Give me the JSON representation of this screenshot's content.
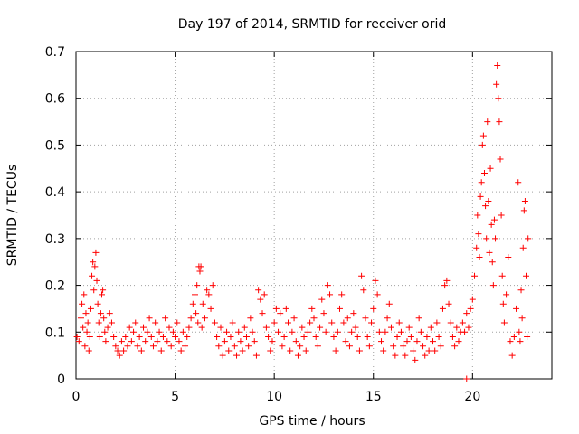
{
  "chart_data": {
    "type": "scatter",
    "title": "Day 197 of 2014, SRMTID for receiver orid",
    "xlabel": "GPS time / hours",
    "ylabel": "SRMTID / TECUs",
    "xlim": [
      0,
      24
    ],
    "ylim": [
      0,
      0.7
    ],
    "xticks": [
      0,
      5,
      10,
      15,
      20
    ],
    "yticks": [
      0,
      0.1,
      0.2,
      0.3,
      0.4,
      0.5,
      0.6,
      0.7
    ],
    "xtick_labels": [
      "0",
      "5",
      "10",
      "15",
      "20"
    ],
    "ytick_labels": [
      "0",
      "0.1",
      "0.2",
      "0.3",
      "0.4",
      "0.5",
      "0.6",
      "0.7"
    ],
    "grid": true,
    "marker": "plus",
    "color": "#ff0000",
    "series": [
      {
        "name": "SRMTID",
        "points": [
          [
            0.05,
            0.09
          ],
          [
            0.15,
            0.08
          ],
          [
            0.25,
            0.13
          ],
          [
            0.3,
            0.16
          ],
          [
            0.35,
            0.11
          ],
          [
            0.4,
            0.18
          ],
          [
            0.45,
            0.07
          ],
          [
            0.5,
            0.14
          ],
          [
            0.55,
            0.1
          ],
          [
            0.6,
            0.12
          ],
          [
            0.65,
            0.06
          ],
          [
            0.7,
            0.09
          ],
          [
            0.75,
            0.15
          ],
          [
            0.8,
            0.22
          ],
          [
            0.85,
            0.25
          ],
          [
            0.9,
            0.19
          ],
          [
            0.95,
            0.24
          ],
          [
            1.0,
            0.27
          ],
          [
            1.05,
            0.21
          ],
          [
            1.1,
            0.16
          ],
          [
            1.15,
            0.12
          ],
          [
            1.2,
            0.09
          ],
          [
            1.25,
            0.14
          ],
          [
            1.3,
            0.18
          ],
          [
            1.35,
            0.19
          ],
          [
            1.4,
            0.13
          ],
          [
            1.45,
            0.1
          ],
          [
            1.5,
            0.08
          ],
          [
            1.6,
            0.11
          ],
          [
            1.7,
            0.14
          ],
          [
            1.8,
            0.12
          ],
          [
            1.9,
            0.09
          ],
          [
            2.0,
            0.07
          ],
          [
            2.1,
            0.06
          ],
          [
            2.2,
            0.05
          ],
          [
            2.3,
            0.08
          ],
          [
            2.4,
            0.06
          ],
          [
            2.5,
            0.09
          ],
          [
            2.6,
            0.07
          ],
          [
            2.7,
            0.11
          ],
          [
            2.8,
            0.08
          ],
          [
            2.9,
            0.1
          ],
          [
            3.0,
            0.12
          ],
          [
            3.1,
            0.07
          ],
          [
            3.2,
            0.09
          ],
          [
            3.3,
            0.06
          ],
          [
            3.4,
            0.11
          ],
          [
            3.5,
            0.08
          ],
          [
            3.6,
            0.1
          ],
          [
            3.7,
            0.13
          ],
          [
            3.8,
            0.09
          ],
          [
            3.9,
            0.07
          ],
          [
            4.0,
            0.12
          ],
          [
            4.1,
            0.08
          ],
          [
            4.2,
            0.1
          ],
          [
            4.3,
            0.06
          ],
          [
            4.4,
            0.09
          ],
          [
            4.5,
            0.13
          ],
          [
            4.6,
            0.08
          ],
          [
            4.7,
            0.11
          ],
          [
            4.8,
            0.07
          ],
          [
            4.9,
            0.1
          ],
          [
            5.0,
            0.09
          ],
          [
            5.1,
            0.12
          ],
          [
            5.2,
            0.08
          ],
          [
            5.3,
            0.06
          ],
          [
            5.4,
            0.1
          ],
          [
            5.5,
            0.07
          ],
          [
            5.6,
            0.09
          ],
          [
            5.7,
            0.11
          ],
          [
            5.8,
            0.13
          ],
          [
            5.9,
            0.16
          ],
          [
            6.0,
            0.18
          ],
          [
            6.05,
            0.14
          ],
          [
            6.1,
            0.2
          ],
          [
            6.15,
            0.12
          ],
          [
            6.2,
            0.24
          ],
          [
            6.25,
            0.23
          ],
          [
            6.3,
            0.24
          ],
          [
            6.35,
            0.11
          ],
          [
            6.4,
            0.16
          ],
          [
            6.5,
            0.13
          ],
          [
            6.6,
            0.19
          ],
          [
            6.7,
            0.18
          ],
          [
            6.8,
            0.15
          ],
          [
            6.9,
            0.2
          ],
          [
            7.0,
            0.12
          ],
          [
            7.1,
            0.09
          ],
          [
            7.2,
            0.07
          ],
          [
            7.3,
            0.11
          ],
          [
            7.4,
            0.05
          ],
          [
            7.5,
            0.08
          ],
          [
            7.6,
            0.1
          ],
          [
            7.7,
            0.06
          ],
          [
            7.8,
            0.09
          ],
          [
            7.9,
            0.12
          ],
          [
            8.0,
            0.07
          ],
          [
            8.1,
            0.05
          ],
          [
            8.2,
            0.1
          ],
          [
            8.3,
            0.08
          ],
          [
            8.4,
            0.06
          ],
          [
            8.5,
            0.11
          ],
          [
            8.6,
            0.09
          ],
          [
            8.7,
            0.07
          ],
          [
            8.8,
            0.13
          ],
          [
            8.9,
            0.1
          ],
          [
            9.0,
            0.08
          ],
          [
            9.1,
            0.05
          ],
          [
            9.2,
            0.19
          ],
          [
            9.3,
            0.17
          ],
          [
            9.4,
            0.14
          ],
          [
            9.5,
            0.18
          ],
          [
            9.6,
            0.11
          ],
          [
            9.7,
            0.09
          ],
          [
            9.8,
            0.06
          ],
          [
            9.9,
            0.08
          ],
          [
            10.0,
            0.12
          ],
          [
            10.1,
            0.15
          ],
          [
            10.2,
            0.1
          ],
          [
            10.3,
            0.14
          ],
          [
            10.4,
            0.07
          ],
          [
            10.5,
            0.09
          ],
          [
            10.6,
            0.15
          ],
          [
            10.7,
            0.12
          ],
          [
            10.8,
            0.06
          ],
          [
            10.9,
            0.1
          ],
          [
            11.0,
            0.13
          ],
          [
            11.1,
            0.08
          ],
          [
            11.2,
            0.05
          ],
          [
            11.3,
            0.07
          ],
          [
            11.4,
            0.11
          ],
          [
            11.5,
            0.09
          ],
          [
            11.6,
            0.06
          ],
          [
            11.7,
            0.1
          ],
          [
            11.8,
            0.12
          ],
          [
            11.9,
            0.15
          ],
          [
            12.0,
            0.13
          ],
          [
            12.1,
            0.09
          ],
          [
            12.2,
            0.07
          ],
          [
            12.3,
            0.11
          ],
          [
            12.4,
            0.17
          ],
          [
            12.5,
            0.14
          ],
          [
            12.6,
            0.1
          ],
          [
            12.7,
            0.2
          ],
          [
            12.8,
            0.18
          ],
          [
            12.9,
            0.12
          ],
          [
            13.0,
            0.09
          ],
          [
            13.1,
            0.06
          ],
          [
            13.2,
            0.1
          ],
          [
            13.3,
            0.15
          ],
          [
            13.4,
            0.18
          ],
          [
            13.5,
            0.12
          ],
          [
            13.6,
            0.08
          ],
          [
            13.7,
            0.13
          ],
          [
            13.8,
            0.07
          ],
          [
            13.9,
            0.1
          ],
          [
            14.0,
            0.14
          ],
          [
            14.1,
            0.11
          ],
          [
            14.2,
            0.09
          ],
          [
            14.3,
            0.06
          ],
          [
            14.4,
            0.22
          ],
          [
            14.5,
            0.19
          ],
          [
            14.6,
            0.13
          ],
          [
            14.7,
            0.09
          ],
          [
            14.8,
            0.07
          ],
          [
            14.9,
            0.12
          ],
          [
            15.0,
            0.15
          ],
          [
            15.1,
            0.21
          ],
          [
            15.2,
            0.18
          ],
          [
            15.3,
            0.1
          ],
          [
            15.4,
            0.08
          ],
          [
            15.5,
            0.06
          ],
          [
            15.6,
            0.1
          ],
          [
            15.7,
            0.13
          ],
          [
            15.8,
            0.16
          ],
          [
            15.9,
            0.11
          ],
          [
            16.0,
            0.07
          ],
          [
            16.1,
            0.05
          ],
          [
            16.2,
            0.09
          ],
          [
            16.3,
            0.12
          ],
          [
            16.4,
            0.1
          ],
          [
            16.5,
            0.07
          ],
          [
            16.6,
            0.05
          ],
          [
            16.7,
            0.08
          ],
          [
            16.8,
            0.11
          ],
          [
            16.9,
            0.09
          ],
          [
            17.0,
            0.06
          ],
          [
            17.1,
            0.04
          ],
          [
            17.2,
            0.08
          ],
          [
            17.3,
            0.13
          ],
          [
            17.4,
            0.1
          ],
          [
            17.5,
            0.07
          ],
          [
            17.6,
            0.05
          ],
          [
            17.7,
            0.09
          ],
          [
            17.8,
            0.06
          ],
          [
            17.9,
            0.11
          ],
          [
            18.0,
            0.08
          ],
          [
            18.1,
            0.06
          ],
          [
            18.2,
            0.12
          ],
          [
            18.3,
            0.09
          ],
          [
            18.4,
            0.07
          ],
          [
            18.5,
            0.15
          ],
          [
            18.6,
            0.2
          ],
          [
            18.7,
            0.21
          ],
          [
            18.8,
            0.16
          ],
          [
            18.9,
            0.12
          ],
          [
            19.0,
            0.09
          ],
          [
            19.1,
            0.07
          ],
          [
            19.2,
            0.11
          ],
          [
            19.3,
            0.08
          ],
          [
            19.4,
            0.1
          ],
          [
            19.5,
            0.12
          ],
          [
            19.6,
            0.1
          ],
          [
            19.7,
            0.14
          ],
          [
            19.8,
            0.11
          ],
          [
            19.9,
            0.15
          ],
          [
            20.0,
            0.17
          ],
          [
            20.1,
            0.22
          ],
          [
            20.2,
            0.28
          ],
          [
            20.25,
            0.35
          ],
          [
            20.3,
            0.31
          ],
          [
            20.35,
            0.26
          ],
          [
            20.4,
            0.39
          ],
          [
            20.45,
            0.42
          ],
          [
            20.5,
            0.5
          ],
          [
            20.55,
            0.52
          ],
          [
            20.6,
            0.44
          ],
          [
            20.65,
            0.37
          ],
          [
            20.7,
            0.3
          ],
          [
            20.75,
            0.55
          ],
          [
            20.8,
            0.38
          ],
          [
            20.85,
            0.27
          ],
          [
            20.9,
            0.45
          ],
          [
            20.95,
            0.33
          ],
          [
            21.0,
            0.25
          ],
          [
            21.05,
            0.2
          ],
          [
            21.1,
            0.34
          ],
          [
            21.15,
            0.3
          ],
          [
            21.2,
            0.63
          ],
          [
            21.25,
            0.67
          ],
          [
            21.3,
            0.6
          ],
          [
            21.35,
            0.55
          ],
          [
            21.4,
            0.47
          ],
          [
            21.45,
            0.35
          ],
          [
            21.5,
            0.22
          ],
          [
            21.55,
            0.16
          ],
          [
            21.6,
            0.12
          ],
          [
            21.7,
            0.18
          ],
          [
            21.8,
            0.26
          ],
          [
            21.9,
            0.08
          ],
          [
            22.0,
            0.05
          ],
          [
            22.1,
            0.09
          ],
          [
            22.2,
            0.15
          ],
          [
            22.3,
            0.42
          ],
          [
            22.35,
            0.1
          ],
          [
            22.4,
            0.08
          ],
          [
            22.45,
            0.19
          ],
          [
            22.5,
            0.13
          ],
          [
            22.55,
            0.28
          ],
          [
            22.6,
            0.36
          ],
          [
            22.65,
            0.38
          ],
          [
            22.7,
            0.22
          ],
          [
            22.75,
            0.09
          ],
          [
            22.8,
            0.3
          ],
          [
            19.7,
            0.0
          ]
        ]
      }
    ]
  }
}
